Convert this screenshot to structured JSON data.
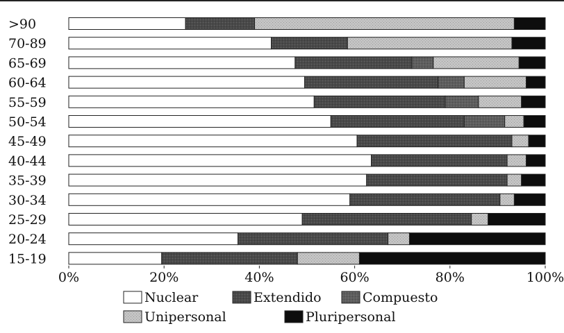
{
  "chart_data": {
    "type": "bar",
    "orientation": "horizontal",
    "stacked": true,
    "percent_stacked": true,
    "categories": [
      ">90",
      "70-89",
      "65-69",
      "60-64",
      "55-59",
      "50-54",
      "45-49",
      "40-44",
      "35-39",
      "30-34",
      "25-29",
      "20-24",
      "15-19"
    ],
    "series": [
      {
        "name": "Nuclear",
        "values": [
          24.5,
          42.5,
          47.5,
          49.5,
          51.5,
          55,
          60.5,
          63.5,
          62.5,
          59,
          49,
          35.5,
          19.5
        ]
      },
      {
        "name": "Extendido",
        "values": [
          14.5,
          16,
          24.5,
          28,
          27.5,
          28,
          32.5,
          28.5,
          29.5,
          31.5,
          35.5,
          31.5,
          28.5
        ]
      },
      {
        "name": "Compuesto",
        "values": [
          0,
          0,
          4.5,
          5.5,
          7,
          8.5,
          0,
          0,
          0,
          0,
          0,
          0,
          0
        ]
      },
      {
        "name": "Unipersonal",
        "values": [
          54.5,
          34.5,
          18,
          13,
          9,
          4,
          3.5,
          4,
          3,
          3,
          3.5,
          4.5,
          13
        ]
      },
      {
        "name": "Pluripersonal",
        "values": [
          6.5,
          7,
          5.5,
          4,
          5,
          4.5,
          3.5,
          4,
          5,
          6.5,
          12,
          28.5,
          39
        ]
      }
    ],
    "colors": {
      "Nuclear": "#ffffff",
      "Extendido": "#4a4a4a",
      "Compuesto": "#5e5e5e",
      "Unipersonal": "#bcbcbc",
      "Pluripersonal": "#0d0d0d"
    },
    "xlim": [
      0,
      100
    ],
    "xticks": [
      "0%",
      "20%",
      "40%",
      "60%",
      "80%",
      "100%"
    ],
    "grid": false,
    "legend_position": "bottom",
    "xlabel": "",
    "ylabel": ""
  }
}
